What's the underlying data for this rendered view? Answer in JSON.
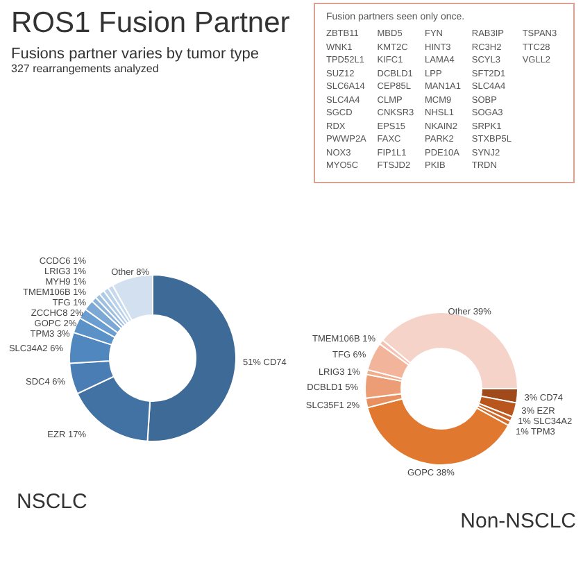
{
  "chart_data": [
    {
      "type": "other",
      "title": "ROS1 Fusion Partner",
      "subtitle": "Fusions partner varies by tumor type",
      "annotations": [
        "327 rearrangements analyzed"
      ]
    },
    {
      "type": "other",
      "title": "Fusion partners seen only once.",
      "annotations": [
        "ZBTB11",
        "WNK1",
        "TPD52L1",
        "SUZ12",
        "SLC6A14",
        "SLC4A4",
        "SGCD",
        "RDX",
        "PWWP2A",
        "NOX3",
        "MYO5C",
        "MBD5",
        "KMT2C",
        "KIFC1",
        "DCBLD1",
        "CEP85L",
        "CLMP",
        "CNKSR3",
        "EPS15",
        "FAXC",
        "FIP1L1",
        "FTSJD2",
        "FYN",
        "HINT3",
        "LAMA4",
        "LPP",
        "MAN1A1",
        "MCM9",
        "NHSL1",
        "NKAIN2",
        "PARK2",
        "PDE10A",
        "PKIB",
        "RAB3IP",
        "RC3H2",
        "SCYL3",
        "SFT2D1",
        "SLC4A4",
        "SOBP",
        "SOGA3",
        "SRPK1",
        "STXBP5L",
        "SYNJ2",
        "TRDN",
        "TSPAN3",
        "TTC28",
        "VGLL2"
      ]
    },
    {
      "type": "donut",
      "title": "NSCLC",
      "categories": [
        "CD74",
        "EZR",
        "SDC4",
        "SLC34A2",
        "TPM3",
        "GOPC",
        "ZCCHC8",
        "TFG",
        "TMEM106B",
        "MYH9",
        "LRIG3",
        "CCDC6",
        "Other"
      ],
      "values": [
        51,
        17,
        6,
        6,
        3,
        2,
        2,
        1,
        1,
        1,
        1,
        1,
        8
      ],
      "value_labels": [
        "51%",
        "17%",
        "6%",
        "6%",
        "3%",
        "2%",
        "2%",
        "1%",
        "1%",
        "1%",
        "1%",
        "1%",
        "8%"
      ],
      "colors": [
        "#3d6a96",
        "#4272a3",
        "#4a7db3",
        "#5087bf",
        "#5a92c8",
        "#6a9dd0",
        "#7ba8d5",
        "#8cb3da",
        "#9dbfe0",
        "#aecae6",
        "#bbd3ea",
        "#c6daee",
        "#d3e0ef"
      ]
    },
    {
      "type": "donut",
      "title": "Non-NSCLC",
      "categories": [
        "CD74",
        "EZR",
        "SLC34A2",
        "TPM3",
        "GOPC",
        "SLC35F1",
        "DCBLD1",
        "LRIG3",
        "TFG",
        "TMEM106B",
        "Other"
      ],
      "values": [
        3,
        3,
        1,
        1,
        38,
        2,
        5,
        1,
        6,
        1,
        39
      ],
      "value_labels": [
        "3%",
        "3%",
        "1%",
        "1%",
        "38%",
        "2%",
        "5%",
        "1%",
        "6%",
        "1%",
        "39%"
      ],
      "colors": [
        "#a0491a",
        "#b8561e",
        "#c86224",
        "#d66c2a",
        "#e0782f",
        "#e89060",
        "#ec9d76",
        "#f0ad8c",
        "#f2b59c",
        "#f4c2b2",
        "#f6d3c9"
      ]
    }
  ]
}
